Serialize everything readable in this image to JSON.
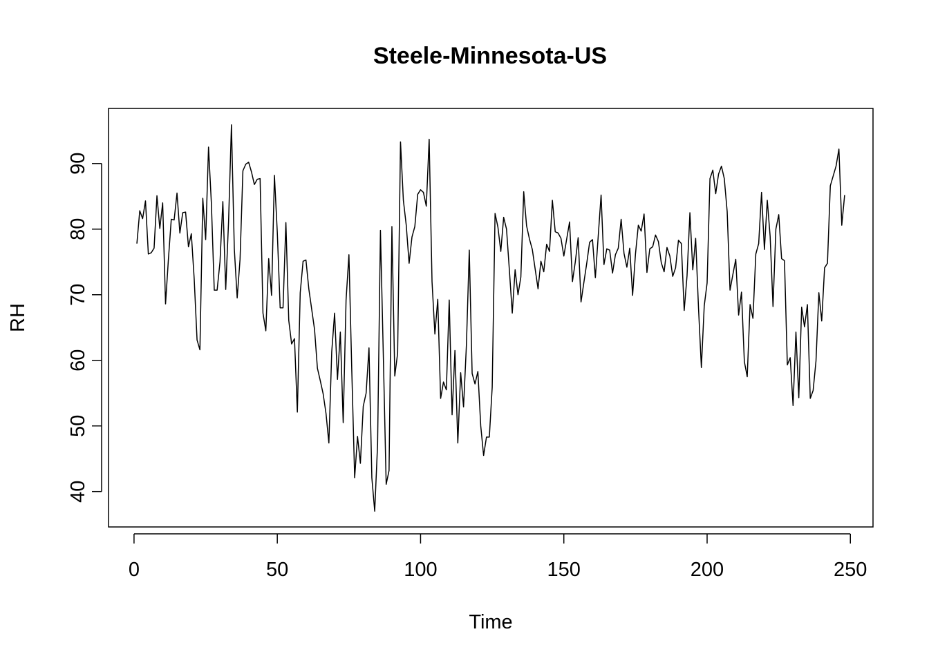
{
  "chart_data": {
    "type": "line",
    "title": "Steele-Minnesota-US",
    "xlabel": "Time",
    "ylabel": "RH",
    "xlim": [
      -8.9,
      257.9
    ],
    "ylim": [
      34.6,
      98.4
    ],
    "x_ticks": [
      0,
      50,
      100,
      150,
      200,
      250
    ],
    "y_ticks": [
      40,
      50,
      60,
      70,
      80,
      90
    ],
    "grid": false,
    "legend": "none",
    "line_color": "#000000",
    "x_start": 1,
    "series": [
      {
        "values": [
          77.8,
          82.8,
          81.6,
          84.3,
          76.2,
          76.4,
          77.1,
          85.1,
          80.1,
          84.0,
          68.6,
          75.4,
          81.5,
          81.4,
          85.5,
          79.4,
          82.5,
          82.6,
          77.3,
          79.3,
          72.4,
          63.1,
          61.6,
          84.7,
          78.4,
          92.5,
          83.9,
          70.7,
          70.7,
          75.0,
          84.2,
          70.8,
          81.2,
          95.9,
          77.0,
          69.5,
          75.4,
          88.9,
          89.9,
          90.2,
          88.7,
          86.8,
          87.6,
          87.7,
          67.2,
          64.5,
          75.5,
          69.9,
          88.2,
          79.5,
          68.0,
          68.0,
          81.0,
          66.1,
          62.5,
          63.3,
          52.1,
          70.3,
          75.1,
          75.3,
          70.9,
          67.8,
          64.7,
          58.8,
          56.9,
          54.9,
          51.9,
          47.4,
          61.3,
          67.2,
          57.1,
          64.3,
          50.5,
          69.2,
          76.1,
          58.4,
          42.1,
          48.4,
          44.3,
          53.0,
          55.0,
          61.9,
          42.1,
          37.0,
          47.2,
          79.8,
          60.8,
          41.1,
          43.2,
          80.4,
          57.6,
          61.1,
          93.3,
          84.4,
          80.6,
          74.8,
          78.8,
          80.4,
          85.3,
          86.0,
          85.6,
          83.5,
          93.7,
          72.0,
          64.0,
          69.3,
          54.2,
          56.7,
          55.5,
          69.2,
          51.7,
          61.5,
          47.4,
          58.1,
          52.9,
          62.3,
          76.8,
          58.0,
          56.4,
          58.3,
          50.0,
          45.5,
          48.3,
          48.3,
          55.9,
          82.4,
          80.3,
          76.6,
          81.8,
          80.0,
          73.7,
          67.2,
          73.8,
          70.0,
          72.7,
          85.7,
          80.5,
          78.5,
          76.9,
          73.9,
          70.9,
          75.1,
          73.5,
          77.7,
          76.6,
          84.4,
          79.6,
          79.4,
          78.6,
          75.9,
          78.5,
          81.1,
          72.0,
          75.0,
          78.7,
          68.9,
          71.9,
          74.8,
          78.0,
          78.4,
          72.6,
          78.9,
          85.2,
          74.6,
          77.0,
          76.8,
          73.3,
          76.1,
          77.1,
          81.5,
          76.3,
          74.2,
          77.1,
          69.9,
          76.2,
          80.6,
          79.7,
          82.3,
          73.4,
          77.0,
          77.3,
          79.1,
          78.1,
          74.9,
          73.5,
          77.2,
          75.9,
          72.8,
          74.1,
          78.3,
          77.8,
          67.6,
          72.9,
          82.5,
          73.8,
          78.6,
          68.0,
          58.9,
          68.3,
          71.8,
          87.7,
          89.0,
          85.4,
          88.4,
          89.6,
          87.7,
          82.7,
          70.7,
          73.1,
          75.4,
          66.9,
          70.4,
          59.8,
          57.5,
          68.5,
          66.4,
          76.2,
          77.8,
          85.6,
          76.9,
          84.4,
          78.9,
          68.2,
          80.0,
          82.2,
          75.5,
          75.2,
          59.3,
          60.4,
          53.1,
          64.3,
          54.3,
          68.1,
          65.1,
          68.5,
          54.2,
          55.4,
          59.9,
          70.3,
          66.0,
          74.1,
          74.8,
          86.6,
          88.1,
          89.6,
          92.2,
          80.6,
          85.2
        ]
      }
    ]
  }
}
